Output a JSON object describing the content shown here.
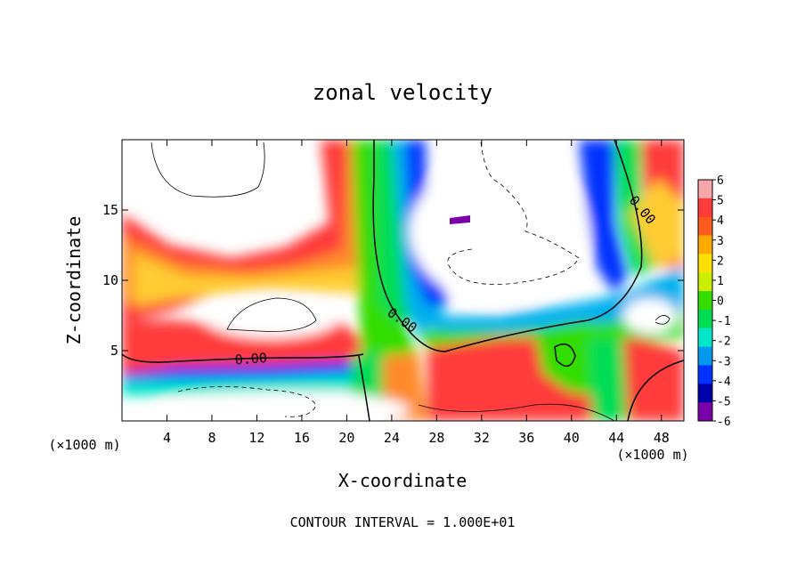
{
  "chart_data": {
    "type": "heatmap",
    "title": "zonal velocity",
    "xlabel": "X-coordinate",
    "ylabel": "Z-coordinate",
    "x_unit": "(×1000 m)",
    "z_unit": "(×1000 m)",
    "footer": "CONTOUR INTERVAL = 1.000E+01",
    "xlim": [
      0,
      50
    ],
    "zlim": [
      0,
      20
    ],
    "xticks": [
      4,
      8,
      12,
      16,
      20,
      24,
      28,
      32,
      36,
      40,
      44,
      48
    ],
    "zticks": [
      5,
      10,
      15
    ],
    "colorbar": {
      "min": -6,
      "max": 6,
      "ticks": [
        6,
        5,
        4,
        3,
        2,
        1,
        0,
        -1,
        -2,
        -3,
        -4,
        -5,
        -6
      ],
      "colors": [
        "#f5a6a8",
        "#ff3a3a",
        "#ff5a1e",
        "#ffaa00",
        "#ffe000",
        "#ccee00",
        "#33dd00",
        "#00dd55",
        "#00e6c8",
        "#0099ee",
        "#0033ff",
        "#0000aa",
        "#7a00aa"
      ]
    },
    "contour_labels": [
      {
        "text": "0.00",
        "x": 11.5,
        "z": 4.1,
        "angle": -4
      },
      {
        "text": "0.00",
        "x": 24.7,
        "z": 6.9,
        "angle": 35
      },
      {
        "text": "0.00",
        "x": 46.0,
        "z": 14.8,
        "angle": 50
      }
    ]
  }
}
